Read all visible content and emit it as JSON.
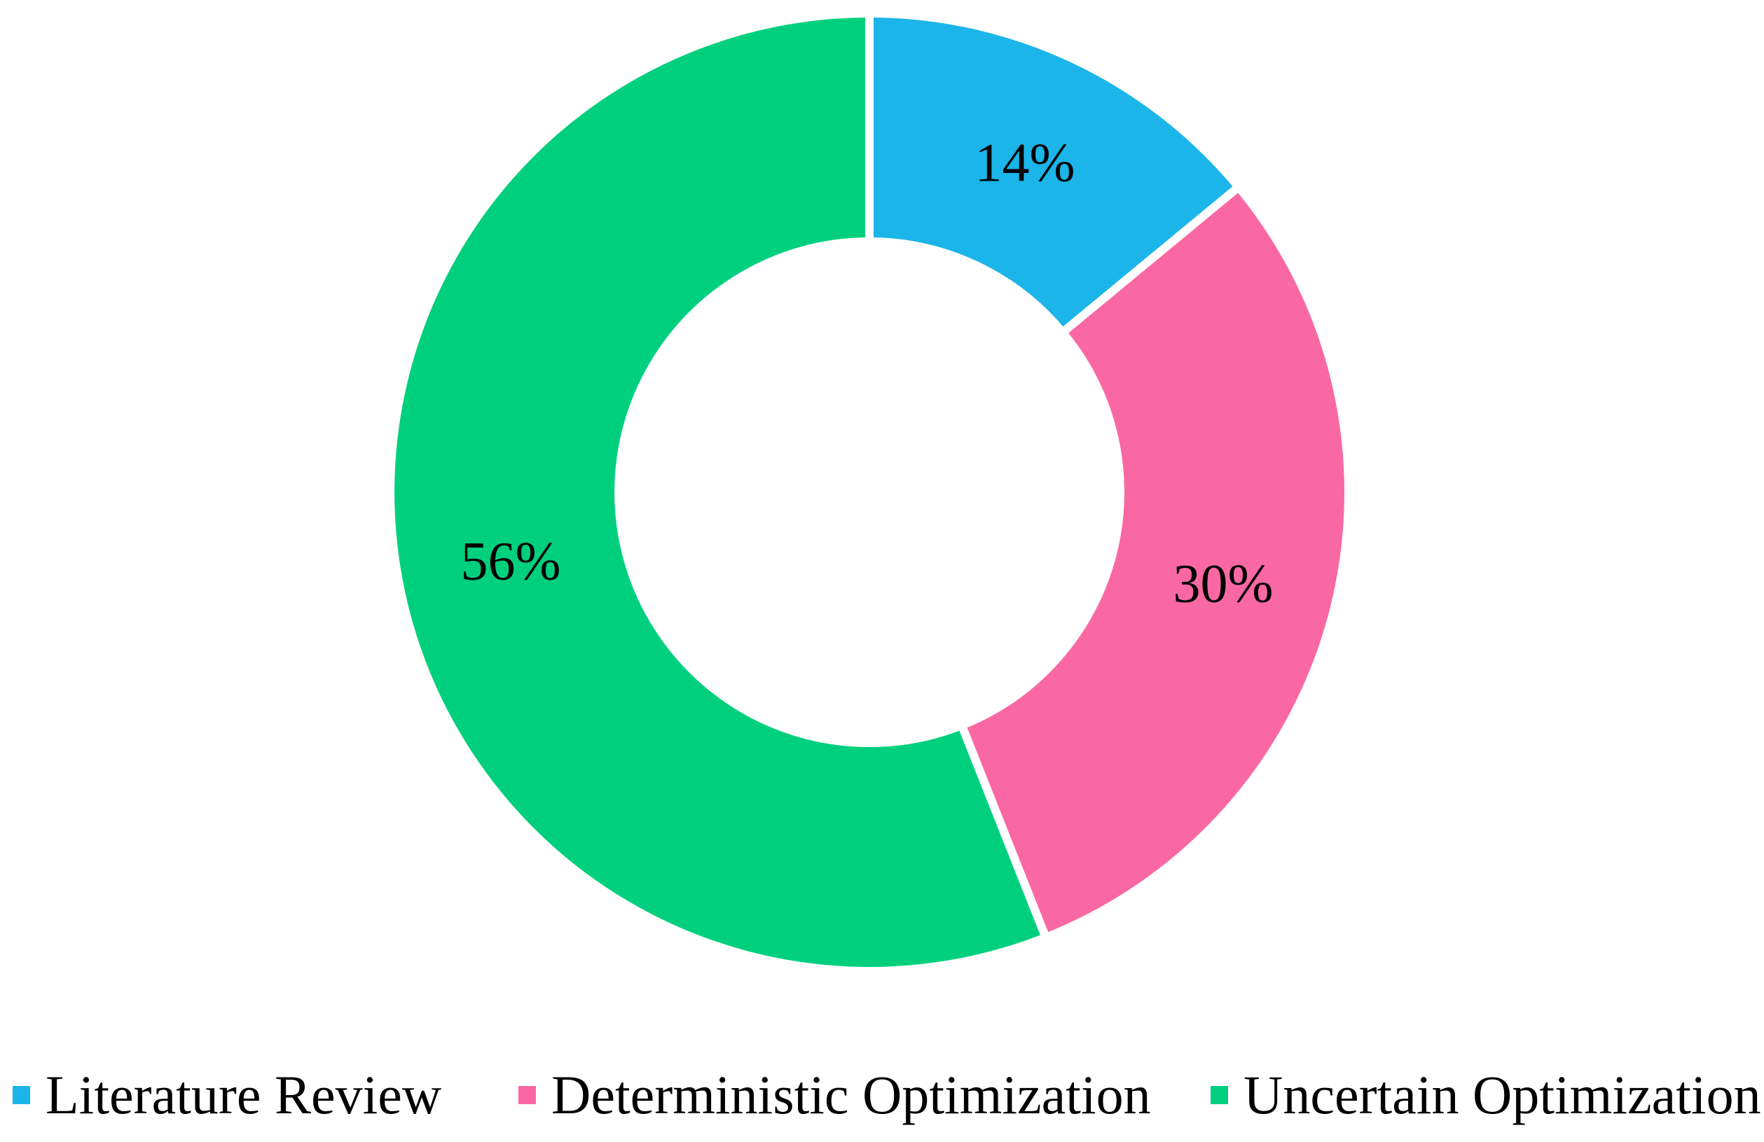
{
  "chart_data": {
    "type": "pie",
    "subtype": "donut",
    "title": "",
    "categories": [
      "Literature Review",
      "Deterministic Optimization",
      "Uncertain Optimization"
    ],
    "values": [
      14,
      30,
      56
    ],
    "unit": "%",
    "slice_labels": [
      "14%",
      "30%",
      "56%"
    ],
    "colors": [
      "#1CB5E9",
      "#FA68A3",
      "#00D07E"
    ],
    "label_color": "#000000",
    "separator_color": "#FFFFFF",
    "start_angle_deg": 0,
    "direction": "clockwise",
    "donut_hole_ratio": 0.52,
    "grid": false,
    "legend_position": "bottom"
  }
}
